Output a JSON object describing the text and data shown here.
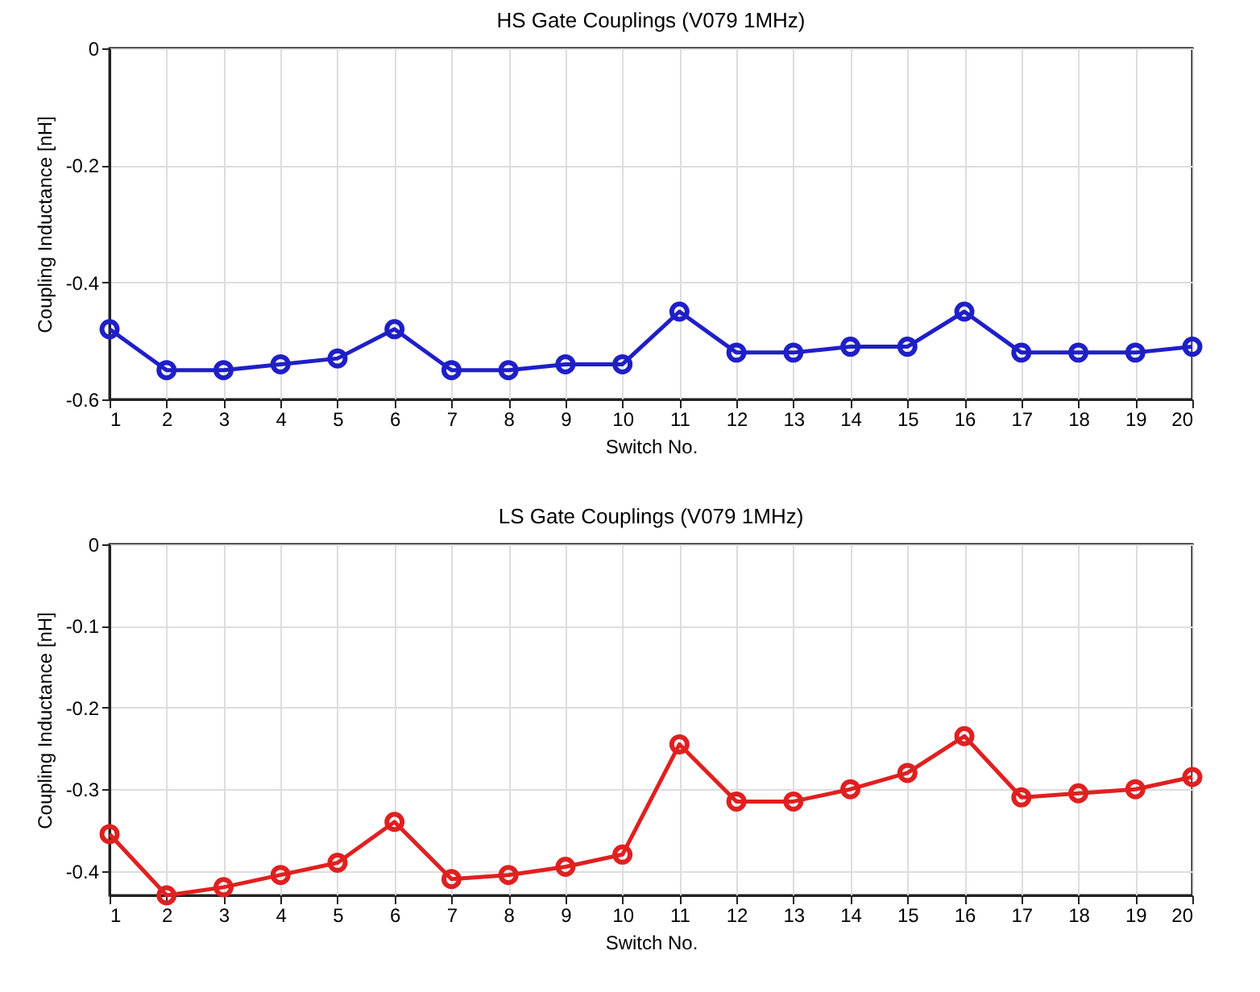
{
  "chart_data": [
    {
      "type": "line",
      "title": "HS Gate Couplings (V079 1MHz)",
      "xlabel": "Switch No.",
      "ylabel": "Coupling Inductance [nH]",
      "x": [
        1,
        2,
        3,
        4,
        5,
        6,
        7,
        8,
        9,
        10,
        11,
        12,
        13,
        14,
        15,
        16,
        17,
        18,
        19,
        20
      ],
      "series": [
        {
          "color": "#1f1fc8",
          "values": [
            -0.48,
            -0.55,
            -0.55,
            -0.54,
            -0.53,
            -0.48,
            -0.55,
            -0.55,
            -0.54,
            -0.54,
            -0.45,
            -0.52,
            -0.52,
            -0.51,
            -0.51,
            -0.45,
            -0.52,
            -0.52,
            -0.52,
            -0.51
          ]
        }
      ],
      "xlim": [
        1,
        20
      ],
      "xticks": [
        1,
        2,
        3,
        4,
        5,
        6,
        7,
        8,
        9,
        10,
        11,
        12,
        13,
        14,
        15,
        16,
        17,
        18,
        19,
        20
      ],
      "ylim": [
        -0.6,
        0
      ],
      "yticks": [
        -0.6,
        -0.4,
        -0.2,
        0
      ],
      "grid": true,
      "marker": "circle",
      "line_style": "solid"
    },
    {
      "type": "line",
      "title": "LS Gate Couplings (V079 1MHz)",
      "xlabel": "Switch No.",
      "ylabel": "Coupling Inductance [nH]",
      "x": [
        1,
        2,
        3,
        4,
        5,
        6,
        7,
        8,
        9,
        10,
        11,
        12,
        13,
        14,
        15,
        16,
        17,
        18,
        19,
        20
      ],
      "series": [
        {
          "color": "#e02020",
          "values": [
            -0.355,
            -0.43,
            -0.42,
            -0.405,
            -0.39,
            -0.34,
            -0.41,
            -0.405,
            -0.395,
            -0.38,
            -0.245,
            -0.315,
            -0.315,
            -0.3,
            -0.28,
            -0.235,
            -0.31,
            -0.305,
            -0.3,
            -0.285
          ]
        }
      ],
      "xlim": [
        1,
        20
      ],
      "xticks": [
        1,
        2,
        3,
        4,
        5,
        6,
        7,
        8,
        9,
        10,
        11,
        12,
        13,
        14,
        15,
        16,
        17,
        18,
        19,
        20
      ],
      "ylim": [
        -0.43,
        0
      ],
      "yticks": [
        -0.4,
        -0.3,
        -0.2,
        -0.1,
        0
      ],
      "grid": true,
      "marker": "circle",
      "line_style": "solid"
    }
  ]
}
